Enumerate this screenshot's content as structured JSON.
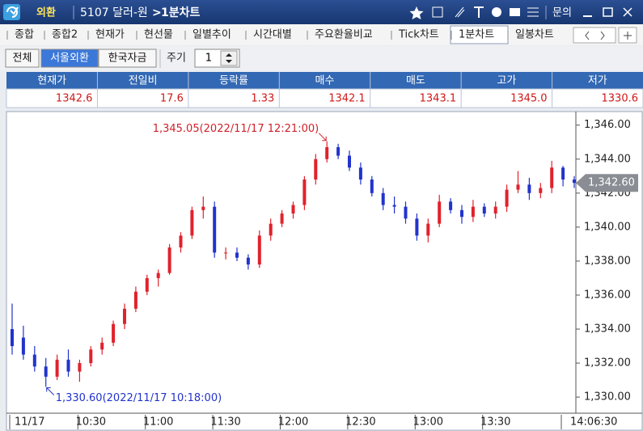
{
  "header": {
    "app": "외환",
    "symbol": "5107 달러-원",
    "separator": ">",
    "screen": "1분차트",
    "help": "문의"
  },
  "tabs": [
    "종합",
    "종합2",
    "현재가",
    "현선물",
    "일별추이",
    "시간대별",
    "주요환율비교",
    "Tick차트",
    "1분차트",
    "일봉차트"
  ],
  "filters": [
    "전체",
    "서울외환",
    "한국자금"
  ],
  "period_label": "주기",
  "period_value": "1",
  "quote_table": {
    "headers": [
      "현재가",
      "전일비",
      "등락률",
      "매수",
      "매도",
      "고가",
      "저가"
    ],
    "values": [
      "1342.6",
      "17.6",
      "1.33",
      "1342.1",
      "1343.1",
      "1345.0",
      "1330.6"
    ]
  },
  "chart_data": {
    "type": "candlestick",
    "categories": [
      "11/17",
      null,
      null,
      null,
      null,
      null,
      null,
      "10:30",
      null,
      null,
      null,
      null,
      null,
      "11:00",
      null,
      null,
      null,
      null,
      null,
      "11:30",
      null,
      null,
      null,
      null,
      null,
      "12:00",
      null,
      null,
      null,
      null,
      null,
      "12:30",
      null,
      null,
      null,
      null,
      null,
      "13:00",
      null,
      null,
      null,
      null,
      null,
      "13:30",
      null,
      null,
      null,
      null,
      null,
      null,
      "14:06:30"
    ],
    "open": [
      1334,
      1333.5,
      1332.5,
      1331.8,
      1331.2,
      1332.2,
      1331.5,
      1332,
      1332.8,
      1333.2,
      1334.3,
      1335.2,
      1336.2,
      1337,
      1337.3,
      1338.8,
      1339.5,
      1341,
      1341.2,
      1338.5,
      1338.5,
      1338.2,
      1337.8,
      1339.5,
      1340.2,
      1340.8,
      1341.3,
      1342.8,
      1344,
      1344.7,
      1344.2,
      1343.5,
      1342.8,
      1342,
      1341.3,
      1341.2,
      1340.5,
      1339.5,
      1340.2,
      1341.5,
      1341,
      1340.6,
      1341.2,
      1340.8,
      1341.2,
      1342.2,
      1342.5,
      1342,
      1342.3,
      1343.5,
      1342.8
    ],
    "high": [
      1335.5,
      1334.2,
      1333,
      1332.3,
      1332.5,
      1332.8,
      1332.2,
      1333,
      1333.5,
      1334.5,
      1335.5,
      1336.5,
      1337.2,
      1337.5,
      1339,
      1339.7,
      1341.2,
      1341.8,
      1341.5,
      1338.8,
      1338.8,
      1338.4,
      1339.8,
      1340.5,
      1341,
      1341.5,
      1343,
      1344.3,
      1345.05,
      1344.9,
      1344.5,
      1343.8,
      1343,
      1342.3,
      1341.8,
      1341.5,
      1340.8,
      1340.5,
      1341.9,
      1341.7,
      1341.3,
      1341.6,
      1341.4,
      1341.5,
      1342.5,
      1343.3,
      1342.9,
      1342.6,
      1343.9,
      1343.6,
      1343
    ],
    "low": [
      1332.5,
      1332.2,
      1331.5,
      1330.6,
      1331,
      1331.2,
      1330.9,
      1331.8,
      1332.5,
      1333,
      1334,
      1335,
      1336,
      1336.5,
      1337.2,
      1338.5,
      1339.3,
      1340.5,
      1338.2,
      1338.1,
      1338,
      1337.5,
      1337.6,
      1339.2,
      1340,
      1340.5,
      1341,
      1342.5,
      1343.8,
      1344,
      1343.3,
      1342.5,
      1341.8,
      1341,
      1340.8,
      1340.2,
      1339.2,
      1339.1,
      1340,
      1340.8,
      1340.2,
      1340.3,
      1340.6,
      1340.5,
      1340.9,
      1342,
      1341.6,
      1341.7,
      1342,
      1342.4,
      1342.3
    ],
    "close": [
      1333,
      1332.5,
      1331.8,
      1331.2,
      1332.2,
      1331.5,
      1332,
      1332.8,
      1333.2,
      1334.3,
      1335.2,
      1336.2,
      1337,
      1337.3,
      1338.8,
      1339.5,
      1341,
      1341.2,
      1338.5,
      1338.5,
      1338.2,
      1337.8,
      1339.5,
      1340.2,
      1340.8,
      1341.3,
      1342.8,
      1344,
      1344.7,
      1344.2,
      1343.5,
      1342.8,
      1342,
      1341.3,
      1341.2,
      1340.5,
      1339.5,
      1340.2,
      1341.5,
      1341,
      1340.6,
      1341.2,
      1340.8,
      1341.2,
      1342.2,
      1342.5,
      1342,
      1342.3,
      1343.5,
      1342.8,
      1342.6
    ],
    "up_color": "#e0222c",
    "down_color": "#2233cc",
    "ylim": [
      1329.1,
      1346.7
    ],
    "yticks": [
      {
        "value": 1330,
        "label": "1,330.00"
      },
      {
        "value": 1332,
        "label": "1,332.00"
      },
      {
        "value": 1334,
        "label": "1,334.00"
      },
      {
        "value": 1336,
        "label": "1,336.00"
      },
      {
        "value": 1338,
        "label": "1,338.00"
      },
      {
        "value": 1340,
        "label": "1,340.00"
      },
      {
        "value": 1342,
        "label": "1,342.00"
      },
      {
        "value": 1344,
        "label": "1,344.00"
      },
      {
        "value": 1346,
        "label": "1,346.00"
      }
    ],
    "grid": false,
    "annotations": [
      {
        "text": "1,345.05(2022/11/17 12:21:00)",
        "value": 1345.05,
        "color": "#d0202a"
      },
      {
        "text": "1,330.60(2022/11/17 10:18:00)",
        "value": 1330.6,
        "color": "#2233cc"
      }
    ],
    "current_price": {
      "value": 1342.6,
      "label": "1,342.60"
    }
  }
}
